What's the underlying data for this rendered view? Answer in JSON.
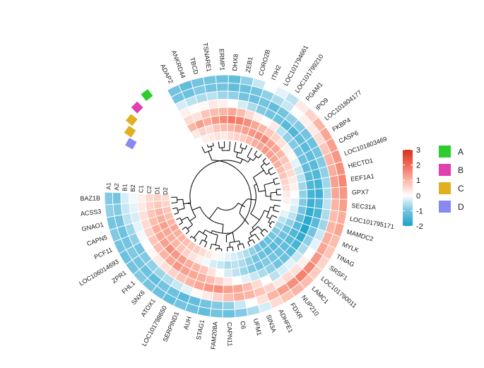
{
  "chart_data": {
    "type": "heatmap",
    "layout": "circular",
    "title": "",
    "tracks": [
      "A1",
      "A2",
      "B1",
      "B2",
      "C1",
      "C2",
      "D1",
      "D2"
    ],
    "genes": [
      "ADAP2",
      "ANKRD44",
      "TBCD",
      "TSNARE1",
      "ERMP1",
      "DHX8",
      "ZEB1",
      "CORO2B",
      "ITIH2",
      "LOC101794661",
      "LOC101799210",
      "PGAM1",
      "IPO9",
      "LOC101804177",
      "FKBP4",
      "CASP6",
      "LOC101803469",
      "HECTD1",
      "EEF1A1",
      "GPX7",
      "SEC31A",
      "LOC101795171",
      "MAMDC2",
      "MYLK",
      "TINAG",
      "SRSF1",
      "LOC101790011",
      "LAMC1",
      "NUP210",
      "FDXR",
      "ADHFE1",
      "SIN3A",
      "UFM1",
      "C6",
      "CAPN11",
      "FAM208A",
      "STAG1",
      "AUH",
      "SERPIND1",
      "LOC101798650",
      "ATOX1",
      "SNX6",
      "FHL1",
      "ZPR1",
      "LOC106014693",
      "PCF11",
      "CAPN5",
      "GNAO1",
      "ACSS3",
      "BAZ1B"
    ],
    "values": [
      [
        -1.0,
        -1.0,
        -0.3,
        0.2,
        0.5,
        1.0,
        0.3,
        0.0
      ],
      [
        -1.2,
        -1.1,
        -0.5,
        0.0,
        0.4,
        1.3,
        0.6,
        0.2
      ],
      [
        -1.0,
        -0.9,
        -0.6,
        0.1,
        0.8,
        1.1,
        0.5,
        0.3
      ],
      [
        -1.0,
        -1.0,
        -0.5,
        0.3,
        0.9,
        1.4,
        0.8,
        0.4
      ],
      [
        -1.1,
        -1.0,
        -0.7,
        0.2,
        1.0,
        1.6,
        0.9,
        0.3
      ],
      [
        -1.2,
        -1.2,
        -0.8,
        0.0,
        1.2,
        1.8,
        1.0,
        0.5
      ],
      [
        -0.8,
        -1.1,
        -1.0,
        -0.3,
        0.9,
        1.7,
        1.2,
        0.6
      ],
      [
        -0.4,
        -1.0,
        -1.1,
        -0.6,
        0.5,
        1.5,
        1.3,
        0.7
      ],
      [
        0.0,
        -0.8,
        -1.0,
        -0.9,
        0.2,
        1.2,
        1.4,
        0.9
      ],
      [
        -0.2,
        -0.6,
        -1.2,
        -1.0,
        0.0,
        1.0,
        1.5,
        1.1
      ],
      [
        -0.5,
        -0.4,
        -1.0,
        -1.1,
        0.3,
        0.8,
        1.6,
        1.2
      ],
      [
        0.3,
        0.0,
        -0.8,
        -1.3,
        -0.5,
        0.6,
        1.3,
        1.4
      ],
      [
        0.6,
        0.2,
        -0.9,
        -1.4,
        -0.8,
        0.4,
        1.2,
        1.3
      ],
      [
        1.0,
        0.3,
        -1.0,
        -1.2,
        -0.9,
        0.2,
        1.0,
        1.2
      ],
      [
        1.2,
        0.5,
        -1.1,
        -1.3,
        -1.0,
        0.1,
        0.8,
        1.1
      ],
      [
        1.3,
        0.8,
        -1.0,
        -1.2,
        -1.1,
        -0.2,
        0.6,
        0.9
      ],
      [
        1.4,
        1.0,
        -0.9,
        -1.3,
        -1.2,
        -0.4,
        0.5,
        0.8
      ],
      [
        1.5,
        1.1,
        -0.8,
        -1.4,
        -1.3,
        -0.5,
        0.3,
        0.6
      ],
      [
        1.6,
        1.3,
        -0.7,
        -1.5,
        -1.4,
        -0.7,
        0.2,
        0.5
      ],
      [
        1.4,
        1.2,
        -0.6,
        -1.6,
        -1.5,
        -0.8,
        0.0,
        0.3
      ],
      [
        1.3,
        1.0,
        -0.5,
        -1.4,
        -1.6,
        -0.9,
        -0.2,
        0.2
      ],
      [
        1.1,
        0.9,
        -0.6,
        -1.5,
        -1.7,
        -1.0,
        -0.3,
        0.0
      ],
      [
        1.2,
        1.0,
        -0.7,
        -1.3,
        -1.8,
        -1.2,
        -0.5,
        -0.2
      ],
      [
        0.9,
        1.1,
        -0.4,
        -1.0,
        -1.9,
        -1.3,
        -0.8,
        -0.5
      ],
      [
        0.8,
        1.2,
        -0.2,
        -0.8,
        -1.7,
        -1.4,
        -1.0,
        -0.7
      ],
      [
        0.6,
        1.4,
        0.0,
        -0.6,
        -1.5,
        -1.3,
        -1.1,
        -0.9
      ],
      [
        0.7,
        1.6,
        0.2,
        -0.4,
        -1.3,
        -1.2,
        -1.2,
        -1.0
      ],
      [
        0.9,
        1.7,
        0.4,
        -0.2,
        -1.1,
        -1.1,
        -1.3,
        -1.1
      ],
      [
        1.0,
        1.5,
        0.5,
        -0.3,
        -1.0,
        -1.0,
        -1.2,
        -1.2
      ],
      [
        0.8,
        1.3,
        0.3,
        -0.5,
        -0.8,
        -0.9,
        -1.1,
        -1.0
      ],
      [
        0.5,
        1.0,
        0.6,
        0.0,
        -0.6,
        -1.0,
        -1.0,
        -0.8
      ],
      [
        -0.3,
        0.4,
        0.8,
        0.5,
        -0.4,
        -0.9,
        -0.8,
        -0.6
      ],
      [
        -0.6,
        0.0,
        1.0,
        0.9,
        -0.2,
        -0.7,
        -0.6,
        -0.4
      ],
      [
        -0.9,
        -0.4,
        1.1,
        1.2,
        0.0,
        -0.5,
        -0.5,
        -0.3
      ],
      [
        -1.1,
        -0.8,
        0.9,
        1.3,
        0.3,
        -0.3,
        -0.6,
        -0.2
      ],
      [
        -1.0,
        -0.9,
        0.6,
        1.5,
        0.6,
        0.0,
        -0.4,
        -0.1
      ],
      [
        -1.2,
        -1.0,
        0.3,
        1.4,
        0.9,
        0.4,
        -0.3,
        0.1
      ],
      [
        -1.1,
        -1.2,
        0.1,
        1.2,
        1.1,
        0.8,
        -0.1,
        0.3
      ],
      [
        -1.0,
        -1.3,
        -0.2,
        1.0,
        1.2,
        1.0,
        0.2,
        0.5
      ],
      [
        -1.2,
        -1.1,
        -0.4,
        0.8,
        1.3,
        1.1,
        0.4,
        0.7
      ],
      [
        -1.1,
        -1.0,
        -0.6,
        0.6,
        1.4,
        1.3,
        0.6,
        0.8
      ],
      [
        -1.0,
        -1.2,
        -0.7,
        0.4,
        1.2,
        1.4,
        0.8,
        0.9
      ],
      [
        -0.9,
        -1.1,
        -0.8,
        0.3,
        1.0,
        1.5,
        1.0,
        1.0
      ],
      [
        -1.0,
        -1.0,
        -0.9,
        0.1,
        0.9,
        1.3,
        1.1,
        1.1
      ],
      [
        -1.1,
        -0.9,
        -1.0,
        0.0,
        0.8,
        1.2,
        1.2,
        1.2
      ],
      [
        -1.0,
        -1.0,
        -0.8,
        -0.1,
        0.6,
        1.1,
        1.3,
        1.0
      ],
      [
        -0.9,
        -1.1,
        -0.7,
        -0.2,
        0.5,
        0.9,
        1.1,
        0.9
      ],
      [
        -1.0,
        -1.0,
        -0.5,
        -0.3,
        0.4,
        0.8,
        1.0,
        0.8
      ],
      [
        -0.8,
        -0.9,
        -0.4,
        -0.2,
        0.3,
        0.6,
        0.8,
        0.6
      ],
      [
        -0.9,
        -1.0,
        -0.3,
        -0.1,
        0.2,
        0.5,
        0.6,
        0.5
      ]
    ],
    "color_scale": {
      "min": -2,
      "max": 3,
      "ticks": [
        3,
        2,
        1,
        0,
        -1,
        -2
      ],
      "stops": [
        {
          "value": -2,
          "color": "#1aa3c8"
        },
        {
          "value": -1,
          "color": "#74c4e0"
        },
        {
          "value": 0,
          "color": "#ffffff"
        },
        {
          "value": 1,
          "color": "#fcb5a5"
        },
        {
          "value": 2,
          "color": "#f06b57"
        },
        {
          "value": 3,
          "color": "#d9301f"
        }
      ]
    },
    "groups": [
      {
        "name": "A",
        "color": "#2ecc2e"
      },
      {
        "name": "B",
        "color": "#e040b0"
      },
      {
        "name": "C",
        "color": "#e0b020"
      },
      {
        "name": "D",
        "color": "#8888f0"
      }
    ],
    "group_legend_position": "right",
    "color_legend_position": "right"
  }
}
